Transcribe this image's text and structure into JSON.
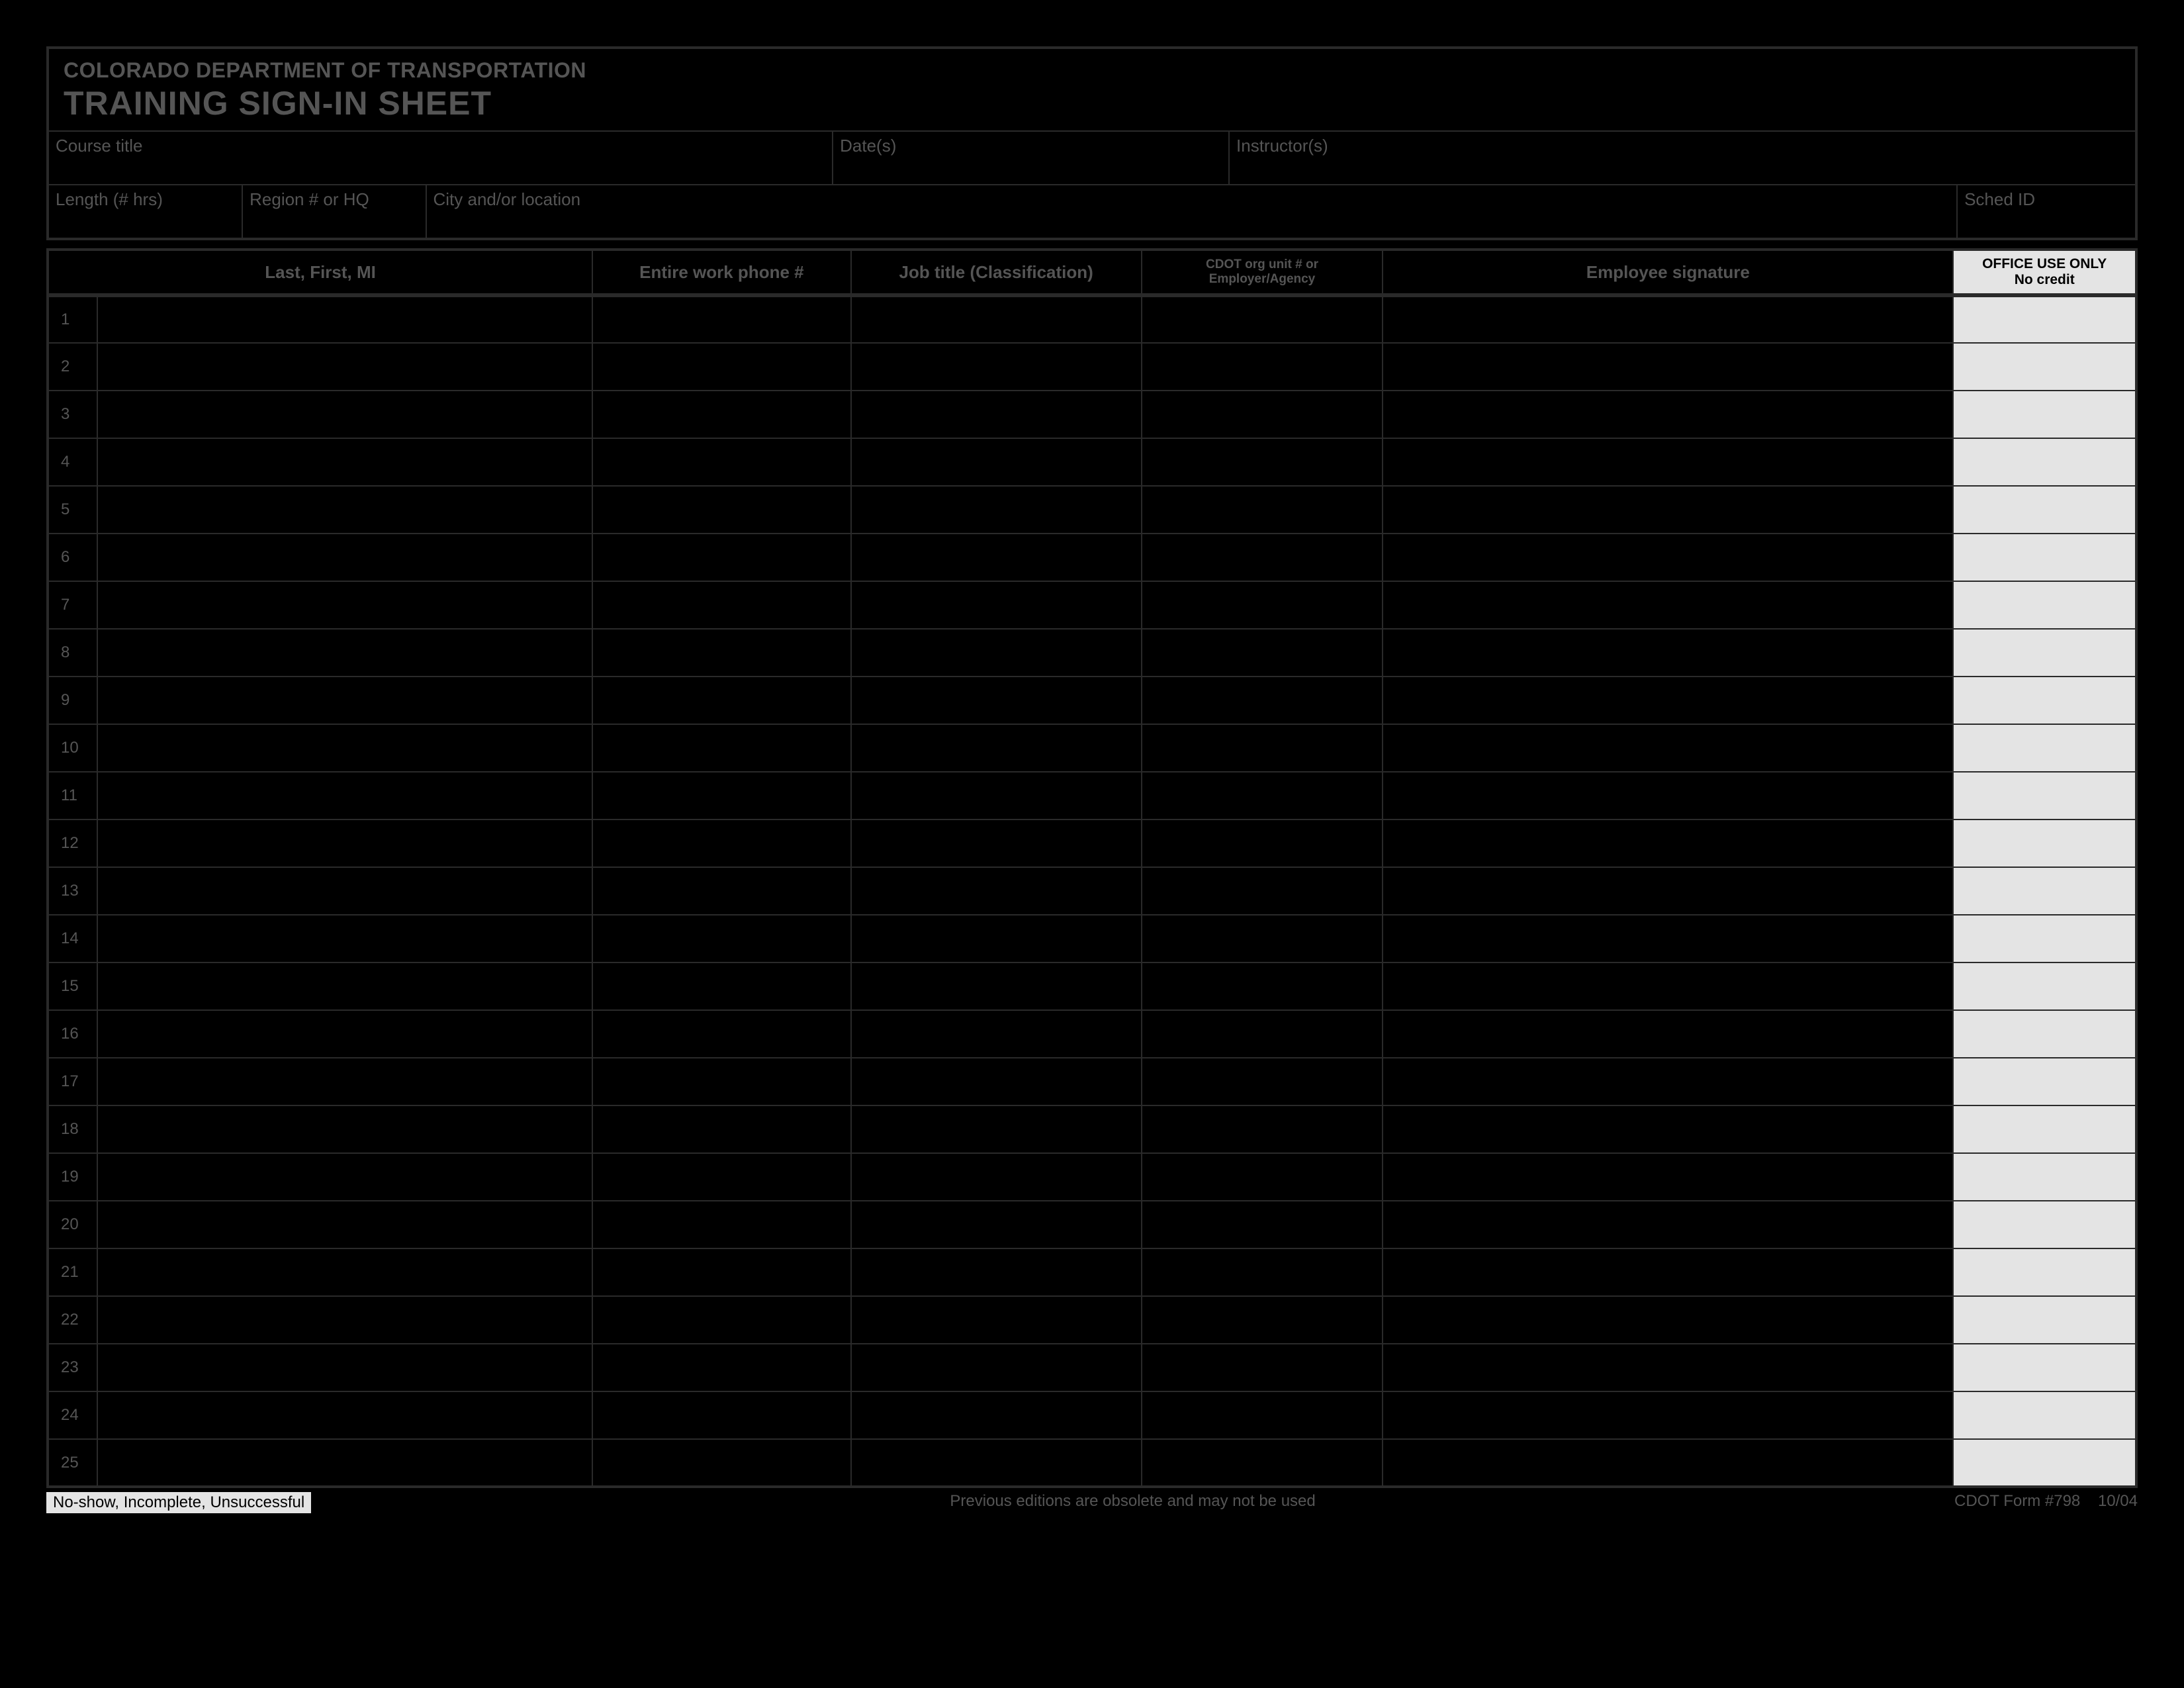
{
  "header": {
    "org": "COLORADO DEPARTMENT OF TRANSPORTATION",
    "title": "TRAINING SIGN-IN SHEET"
  },
  "info_row1": {
    "course_title_label": "Course title",
    "dates_label": "Date(s)",
    "instructors_label": "Instructor(s)"
  },
  "info_row2": {
    "length_label": "Length (# hrs)",
    "region_label": "Region # or HQ",
    "city_label": "City and/or location",
    "sched_id_label": "Sched ID"
  },
  "columns": {
    "name": "Last, First, MI",
    "phone": "Entire work phone #",
    "job": "Job title (Classification)",
    "org_unit_line1": "CDOT org unit # or",
    "org_unit_line2": "Employer/Agency",
    "signature": "Employee signature",
    "office_line1": "OFFICE USE ONLY",
    "office_line2": "No credit"
  },
  "column_widths_pct": {
    "rownum": 2.3,
    "name": 23.0,
    "phone": 12.0,
    "job": 13.5,
    "org_unit": 11.2,
    "signature": 26.5,
    "office": 8.5
  },
  "row_count": 25,
  "footer": {
    "left": "No-show, Incomplete, Unsuccessful",
    "center": "Previous editions are obsolete and may not be used",
    "right_form": "CDOT Form #798",
    "right_date": "10/04"
  },
  "colors": {
    "page_bg": "#000000",
    "line": "#2a2a2a",
    "text_dim": "#555555",
    "office_bg": "#e4e4e4",
    "office_text": "#000000"
  }
}
